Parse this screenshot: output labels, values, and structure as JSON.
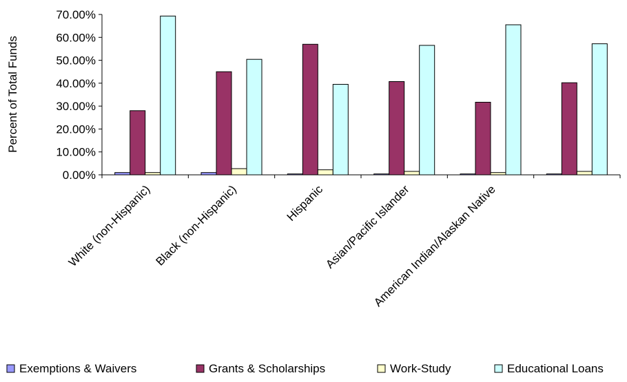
{
  "chart_data": {
    "type": "bar",
    "title": "",
    "xlabel": "",
    "ylabel": "Percent of Total Funds",
    "ylim": [
      0,
      70
    ],
    "yticks": [
      "0.00%",
      "10.00%",
      "20.00%",
      "30.00%",
      "40.00%",
      "50.00%",
      "60.00%",
      "70.00%"
    ],
    "grid": false,
    "legend_position": "bottom",
    "categories": [
      "White (non-Hispanic)",
      "Black (non-Hispanic)",
      "Hispanic",
      "Asian/Pacific Islander",
      "American Indian/Alaskan Native",
      ""
    ],
    "series": [
      {
        "name": "Exemptions & Waivers",
        "color": "#9999ff",
        "values": [
          1.0,
          1.0,
          0.4,
          0.4,
          0.4,
          0.4
        ]
      },
      {
        "name": "Grants & Scholarships",
        "color": "#993366",
        "values": [
          28.0,
          45.0,
          57.0,
          40.7,
          31.7,
          40.2
        ]
      },
      {
        "name": "Work-Study",
        "color": "#ffffcc",
        "values": [
          1.0,
          2.7,
          2.2,
          1.5,
          1.0,
          1.5
        ]
      },
      {
        "name": "Educational Loans",
        "color": "#ccffff",
        "values": [
          69.3,
          50.4,
          39.5,
          56.5,
          65.5,
          57.2
        ]
      }
    ]
  }
}
